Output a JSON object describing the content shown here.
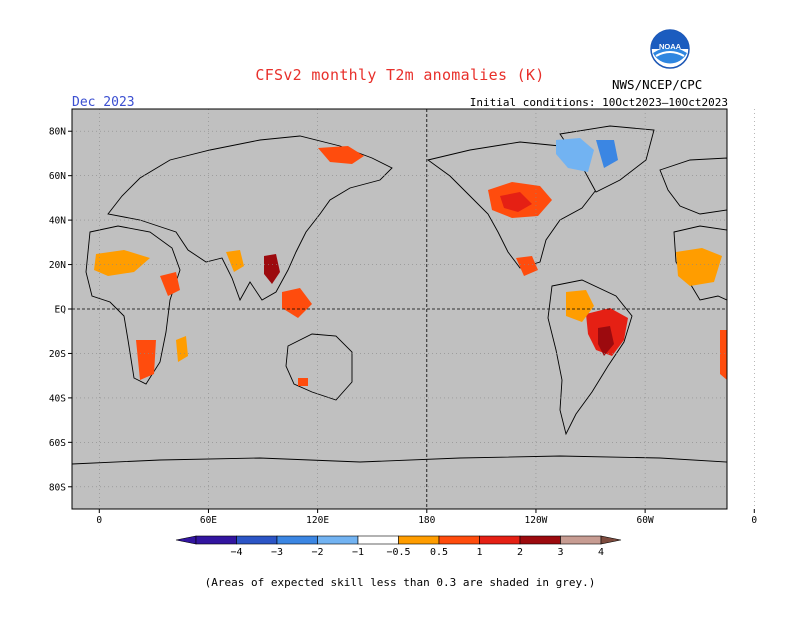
{
  "header": {
    "title": "CFSv2 monthly T2m anomalies (K)",
    "period": "Dec 2023",
    "initial_conditions": "Initial conditions: 10Oct2023—10Oct2023",
    "agency": "NWS/NCEP/CPC",
    "logo_text": "NOAA"
  },
  "axes": {
    "lat_labels": [
      "80N",
      "60N",
      "40N",
      "20N",
      "EQ",
      "20S",
      "40S",
      "60S",
      "80S"
    ],
    "lon_labels": [
      "0",
      "60E",
      "120E",
      "180",
      "120W",
      "60W",
      "0"
    ]
  },
  "colorbar": {
    "labels": [
      "−4",
      "−3",
      "−2",
      "−1",
      "−0.5",
      "0.5",
      "1",
      "2",
      "3",
      "4"
    ],
    "colors": [
      "#3215a0",
      "#2c55c6",
      "#3b86e3",
      "#72b3f2",
      "#ffffff",
      "#ff9d00",
      "#ff4c0d",
      "#e52014",
      "#9c0a0e",
      "#c79c92",
      "#7d4b3e"
    ]
  },
  "map": {
    "ocean_color": "#c0c0c0",
    "missing_skill_color": "#c0c0c0"
  },
  "footer": {
    "note": "(Areas of expected skill less than 0.3 are shaded in grey.)"
  }
}
